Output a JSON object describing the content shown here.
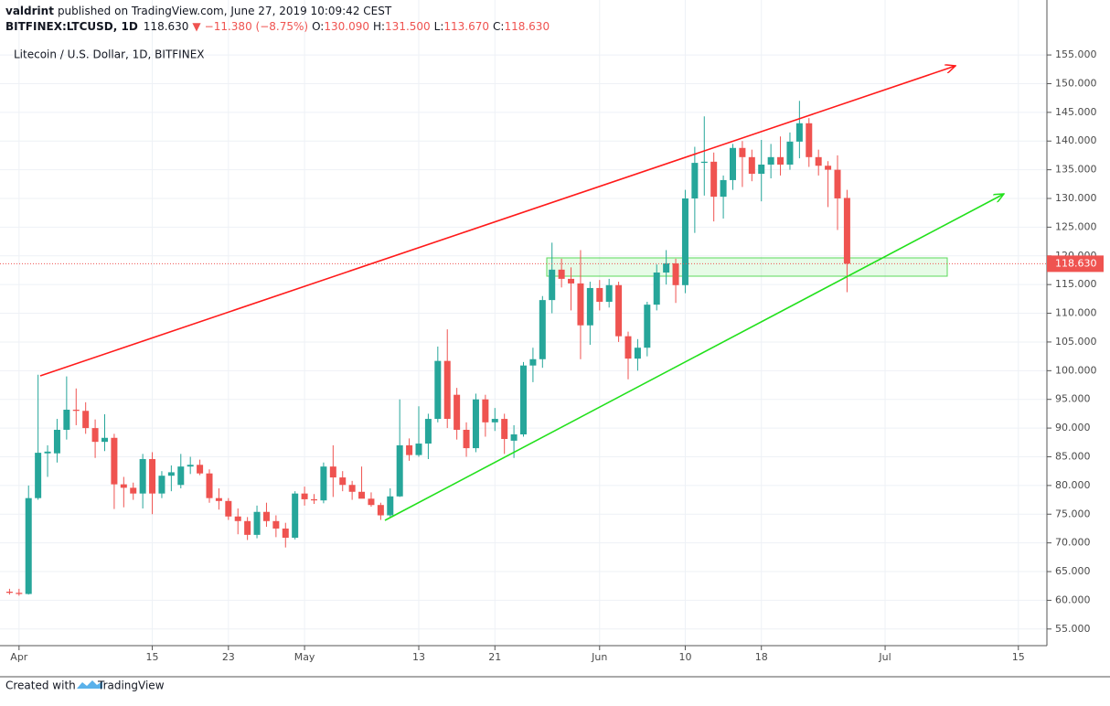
{
  "header": {
    "author": "valdrint",
    "published": "published on TradingView.com, June 27, 2019 10:09:42 CEST",
    "symbol": "BITFINEX:LTCUSD, 1D",
    "last": "118.630",
    "arrow": "▼",
    "change": "−11.380 (−8.75%)",
    "ohlc": [
      {
        "key": "O:",
        "value": "130.090"
      },
      {
        "key": "H:",
        "value": "131.500"
      },
      {
        "key": "L:",
        "value": "113.670"
      },
      {
        "key": "C:",
        "value": "118.630"
      }
    ]
  },
  "footer": {
    "created": "Created with",
    "brand": "TradingView"
  },
  "chart_data": {
    "type": "candlestick",
    "title": "Litecoin / U.S. Dollar, 1D, BITFINEX",
    "up_color": "#26a69a",
    "down_color": "#ef5350",
    "grid": true,
    "x": [
      "2019-03-31",
      "2019-04-01",
      "2019-04-02",
      "2019-04-03",
      "2019-04-04",
      "2019-04-05",
      "2019-04-06",
      "2019-04-07",
      "2019-04-08",
      "2019-04-09",
      "2019-04-10",
      "2019-04-11",
      "2019-04-12",
      "2019-04-13",
      "2019-04-14",
      "2019-04-15",
      "2019-04-16",
      "2019-04-17",
      "2019-04-18",
      "2019-04-19",
      "2019-04-20",
      "2019-04-21",
      "2019-04-22",
      "2019-04-23",
      "2019-04-24",
      "2019-04-25",
      "2019-04-26",
      "2019-04-27",
      "2019-04-28",
      "2019-04-29",
      "2019-04-30",
      "2019-05-01",
      "2019-05-02",
      "2019-05-03",
      "2019-05-04",
      "2019-05-05",
      "2019-05-06",
      "2019-05-07",
      "2019-05-08",
      "2019-05-09",
      "2019-05-10",
      "2019-05-11",
      "2019-05-12",
      "2019-05-13",
      "2019-05-14",
      "2019-05-15",
      "2019-05-16",
      "2019-05-17",
      "2019-05-18",
      "2019-05-19",
      "2019-05-20",
      "2019-05-21",
      "2019-05-22",
      "2019-05-23",
      "2019-05-24",
      "2019-05-25",
      "2019-05-26",
      "2019-05-27",
      "2019-05-28",
      "2019-05-29",
      "2019-05-30",
      "2019-05-31",
      "2019-06-01",
      "2019-06-02",
      "2019-06-03",
      "2019-06-04",
      "2019-06-05",
      "2019-06-06",
      "2019-06-07",
      "2019-06-08",
      "2019-06-09",
      "2019-06-10",
      "2019-06-11",
      "2019-06-12",
      "2019-06-13",
      "2019-06-14",
      "2019-06-15",
      "2019-06-16",
      "2019-06-17",
      "2019-06-18",
      "2019-06-19",
      "2019-06-20",
      "2019-06-21",
      "2019-06-22",
      "2019-06-23",
      "2019-06-24",
      "2019-06-25",
      "2019-06-26",
      "2019-06-27"
    ],
    "open": [
      61.5,
      61.3,
      61.1,
      77.8,
      85.6,
      85.6,
      89.7,
      93.2,
      93.0,
      90.0,
      87.6,
      88.3,
      80.2,
      79.6,
      78.6,
      84.6,
      78.6,
      81.7,
      80.1,
      83.3,
      83.6,
      82.1,
      77.8,
      77.3,
      74.6,
      73.8,
      71.4,
      75.4,
      73.8,
      72.5,
      70.9,
      78.6,
      77.6,
      77.4,
      83.3,
      81.4,
      80.1,
      78.9,
      77.7,
      76.6,
      74.8,
      78.1,
      87.0,
      85.3,
      87.3,
      91.6,
      101.7,
      95.8,
      89.7,
      86.5,
      95.0,
      91.0,
      91.6,
      87.8,
      88.9,
      100.9,
      102.0,
      112.3,
      117.6,
      116.0,
      115.2,
      107.9,
      114.4,
      112.0,
      114.9,
      106.0,
      102.1,
      104.0,
      111.5,
      117.1,
      118.7,
      114.9,
      130.0,
      136.2,
      136.4,
      130.3,
      133.2,
      138.8,
      137.2,
      134.3,
      135.9,
      137.2,
      135.9,
      139.9,
      143.1,
      137.2,
      135.7,
      135.0,
      130.09
    ],
    "high": [
      62.0,
      62.0,
      80.0,
      99.3,
      87.0,
      91.6,
      99.0,
      96.9,
      94.5,
      91.5,
      92.4,
      89.0,
      81.5,
      80.5,
      85.5,
      85.8,
      82.5,
      83.5,
      85.5,
      85.0,
      84.5,
      82.8,
      79.5,
      77.8,
      76.0,
      74.5,
      76.5,
      77.0,
      74.8,
      73.5,
      79.0,
      79.8,
      78.5,
      84.0,
      87.0,
      82.5,
      80.8,
      83.3,
      78.8,
      77.0,
      79.5,
      95.0,
      88.2,
      93.8,
      92.5,
      104.2,
      107.2,
      97.0,
      91.0,
      96.0,
      95.8,
      93.5,
      92.5,
      90.5,
      101.5,
      104.0,
      113.0,
      122.3,
      119.5,
      118.0,
      121.0,
      115.5,
      115.8,
      116.0,
      115.5,
      106.8,
      105.5,
      112.0,
      118.5,
      121.0,
      119.5,
      131.5,
      139.0,
      144.3,
      138.0,
      134.0,
      139.5,
      140.0,
      138.5,
      140.2,
      139.5,
      140.8,
      141.5,
      147.0,
      144.0,
      138.5,
      136.5,
      137.5,
      131.5
    ],
    "low": [
      61.0,
      60.8,
      61.0,
      77.5,
      81.5,
      84.0,
      88.0,
      90.5,
      89.0,
      84.8,
      86.0,
      75.9,
      76.2,
      77.5,
      76.0,
      75.0,
      77.8,
      79.0,
      79.5,
      82.0,
      81.8,
      77.0,
      75.8,
      74.0,
      71.5,
      70.5,
      70.8,
      72.8,
      71.0,
      69.2,
      70.6,
      76.5,
      76.8,
      76.9,
      78.0,
      79.0,
      77.5,
      77.8,
      76.3,
      74.0,
      74.5,
      78.0,
      84.3,
      85.0,
      84.6,
      91.0,
      90.0,
      88.0,
      85.0,
      85.8,
      88.5,
      89.5,
      85.5,
      84.8,
      88.5,
      98.0,
      100.5,
      110.0,
      114.5,
      110.5,
      102.0,
      104.5,
      110.5,
      111.0,
      105.0,
      98.5,
      100.0,
      102.5,
      110.5,
      115.0,
      111.8,
      113.5,
      124.0,
      130.5,
      126.0,
      126.5,
      131.5,
      132.0,
      133.0,
      129.5,
      133.5,
      134.0,
      135.0,
      137.0,
      135.5,
      134.0,
      128.5,
      124.5,
      113.67
    ],
    "close": [
      61.3,
      61.1,
      77.8,
      85.7,
      85.9,
      89.7,
      93.2,
      93.0,
      90.0,
      87.6,
      88.3,
      80.2,
      79.6,
      78.6,
      84.6,
      78.6,
      81.7,
      82.3,
      83.3,
      83.6,
      82.1,
      77.8,
      77.3,
      74.6,
      73.8,
      71.4,
      75.4,
      73.8,
      72.5,
      70.9,
      78.6,
      77.6,
      77.4,
      83.3,
      81.4,
      80.1,
      78.9,
      77.7,
      76.6,
      74.8,
      78.1,
      87.0,
      85.3,
      87.3,
      91.6,
      101.7,
      91.6,
      89.7,
      86.5,
      95.0,
      91.0,
      91.6,
      88.1,
      88.9,
      100.9,
      102.0,
      112.3,
      117.6,
      116.0,
      115.2,
      107.9,
      114.4,
      112.0,
      114.9,
      106.0,
      102.1,
      104.0,
      111.5,
      117.1,
      118.7,
      114.9,
      130.0,
      136.2,
      136.4,
      130.3,
      133.2,
      138.8,
      137.2,
      134.3,
      135.9,
      137.2,
      135.9,
      139.9,
      143.1,
      137.2,
      135.7,
      135.0,
      130.01,
      118.63
    ],
    "xlim": [
      "2019-03-30",
      "2019-07-18"
    ],
    "xticks": [
      {
        "value": "2019-04-01",
        "label": "Apr"
      },
      {
        "value": "2019-04-15",
        "label": "15"
      },
      {
        "value": "2019-04-23",
        "label": "23"
      },
      {
        "value": "2019-05-01",
        "label": "May"
      },
      {
        "value": "2019-05-13",
        "label": "13"
      },
      {
        "value": "2019-05-21",
        "label": "21"
      },
      {
        "value": "2019-06-01",
        "label": "Jun"
      },
      {
        "value": "2019-06-10",
        "label": "10"
      },
      {
        "value": "2019-06-18",
        "label": "18"
      },
      {
        "value": "2019-07-01",
        "label": "Jul"
      },
      {
        "value": "2019-07-15",
        "label": "15"
      }
    ],
    "ylim": [
      52.1,
      158.2
    ],
    "yticks": [
      {
        "value": 55,
        "label": "55.000"
      },
      {
        "value": 60,
        "label": "60.000"
      },
      {
        "value": 65,
        "label": "65.000"
      },
      {
        "value": 70,
        "label": "70.000"
      },
      {
        "value": 75,
        "label": "75.000"
      },
      {
        "value": 80,
        "label": "80.000"
      },
      {
        "value": 85,
        "label": "85.000"
      },
      {
        "value": 90,
        "label": "90.000"
      },
      {
        "value": 95,
        "label": "95.000"
      },
      {
        "value": 100,
        "label": "100.000"
      },
      {
        "value": 105,
        "label": "105.000"
      },
      {
        "value": 110,
        "label": "110.000"
      },
      {
        "value": 115,
        "label": "115.000"
      },
      {
        "value": 120,
        "label": "120.000"
      },
      {
        "value": 125,
        "label": "125.000"
      },
      {
        "value": 130,
        "label": "130.000"
      },
      {
        "value": 135,
        "label": "135.000"
      },
      {
        "value": 140,
        "label": "140.000"
      },
      {
        "value": 145,
        "label": "145.000"
      },
      {
        "value": 150,
        "label": "150.000"
      },
      {
        "value": 155,
        "label": "155.000"
      }
    ],
    "last_price": {
      "value": 118.63,
      "label": "118.630"
    }
  }
}
